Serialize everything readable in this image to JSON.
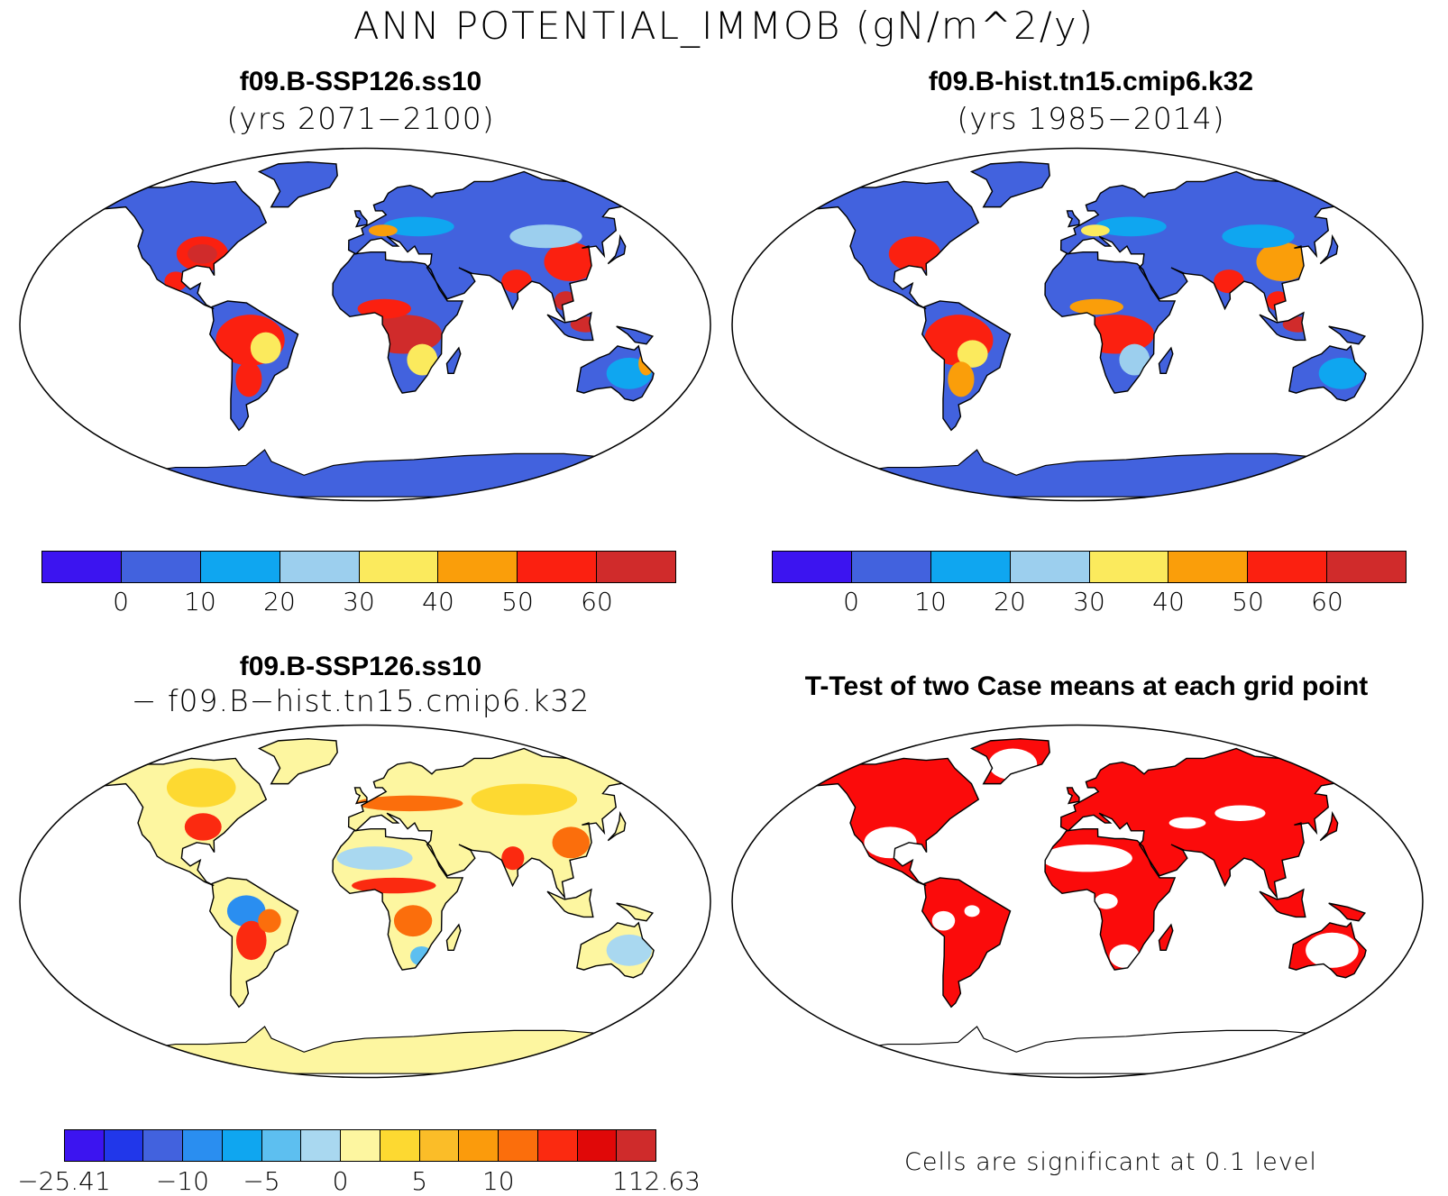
{
  "title": "ANN POTENTIAL_IMMOB (gN/m^2/y)",
  "panels": [
    {
      "title": "f09.B-SSP126.ss10",
      "subtitle": "(yrs 2071−2100)",
      "field": "case1"
    },
    {
      "title": "f09.B-hist.tn15.cmip6.k32",
      "subtitle": "(yrs 1985−2014)",
      "field": "case2"
    },
    {
      "title": "f09.B-SSP126.ss10",
      "subtitle": "− f09.B−hist.tn15.cmip6.k32",
      "field": "difference"
    },
    {
      "title": "T-Test of two Case means at each grid point",
      "subtitle": "",
      "field": "significance"
    }
  ],
  "colorbars": {
    "absolute": {
      "colors": [
        "#3c14f0",
        "#4262de",
        "#0fa6f0",
        "#9ccfee",
        "#fbea5d",
        "#fa9e0a",
        "#fb2010",
        "#d02b2b"
      ],
      "labels": [
        "0",
        "10",
        "20",
        "30",
        "40",
        "50",
        "60"
      ]
    },
    "difference": {
      "colors": [
        "#3c14f0",
        "#2137ea",
        "#4262de",
        "#2a8ef0",
        "#0fa6f0",
        "#5dbff0",
        "#a9d8f0",
        "#fdf6a0",
        "#fdd931",
        "#fbbd28",
        "#fb9b0c",
        "#fb6e0c",
        "#fb2a10",
        "#e00808",
        "#cf2b2b"
      ],
      "labels": [
        "−25.41",
        "−10",
        "−5",
        "0",
        "5",
        "10",
        "112.63"
      ]
    }
  },
  "footnote": "Cells are significant at 0.1 level",
  "colors": {
    "significance": "#fb0b0b"
  }
}
